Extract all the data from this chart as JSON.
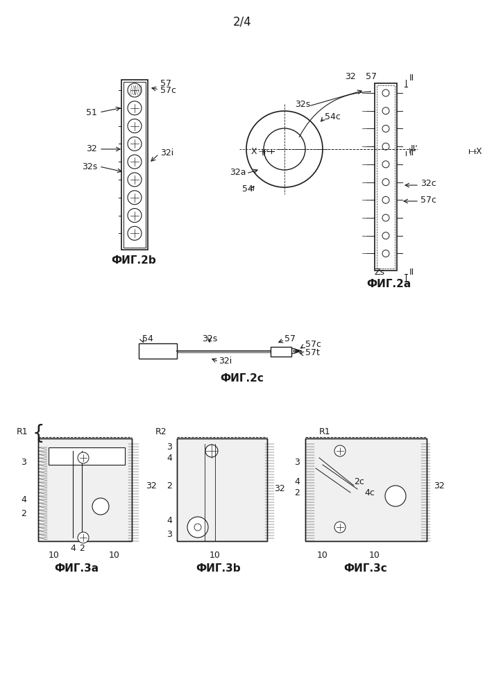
{
  "page_label": "2/4",
  "fig2b_label": "ФИГ.2b",
  "fig2a_label": "ФИГ.2а",
  "fig2c_label": "ФИГ.2с",
  "fig3a_label": "ФИГ.3а",
  "fig3b_label": "ФИГ.3b",
  "fig3c_label": "ФИГ.3с",
  "bg_color": "#ffffff",
  "line_color": "#1a1a1a",
  "font_size_label": 11,
  "font_size_annot": 9
}
